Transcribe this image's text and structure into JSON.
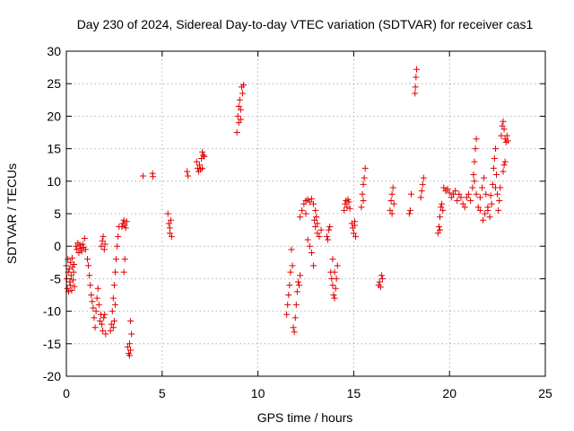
{
  "chart_data": {
    "type": "scatter",
    "title": "Day 230 of 2024, Sidereal Day-to-day VTEC variation (SDTVAR) for receiver cas1",
    "xlabel": "GPS time / hours",
    "ylabel": "SDTVAR / TECUs",
    "xlim": [
      0,
      25
    ],
    "ylim": [
      -20,
      30
    ],
    "xticks": [
      0,
      5,
      10,
      15,
      20,
      25
    ],
    "yticks": [
      -20,
      -15,
      -10,
      -5,
      0,
      5,
      10,
      15,
      20,
      25,
      30
    ],
    "xtick_labels": [
      "0",
      "5",
      "10",
      "15",
      "20",
      "25"
    ],
    "ytick_labels": [
      "-20",
      "-15",
      "-10",
      "-5",
      "0",
      "5",
      "10",
      "15",
      "20",
      "25",
      "30"
    ],
    "grid": true,
    "marker": "plus",
    "color": "#e00000",
    "series": [
      {
        "name": "SDTVAR",
        "points": [
          [
            0.0,
            -3
          ],
          [
            0.02,
            -5
          ],
          [
            0.05,
            -6.5
          ],
          [
            0.08,
            -2
          ],
          [
            0.1,
            -4
          ],
          [
            0.12,
            -7
          ],
          [
            0.15,
            -3.5
          ],
          [
            0.18,
            -5.5
          ],
          [
            0.2,
            -6
          ],
          [
            0.22,
            -2.5
          ],
          [
            0.25,
            -4.5
          ],
          [
            0.28,
            -6.8
          ],
          [
            0.3,
            -1.8
          ],
          [
            0.32,
            -3.2
          ],
          [
            0.35,
            -5.2
          ],
          [
            0.38,
            -4
          ],
          [
            0.4,
            -2.8
          ],
          [
            0.42,
            -6.2
          ],
          [
            0.5,
            0
          ],
          [
            0.55,
            -0.5
          ],
          [
            0.6,
            0.5
          ],
          [
            0.65,
            -1
          ],
          [
            0.7,
            0.2
          ],
          [
            0.75,
            -0.3
          ],
          [
            0.8,
            -0.8
          ],
          [
            0.85,
            0.3
          ],
          [
            0.9,
            -0.2
          ],
          [
            0.95,
            1.2
          ],
          [
            1.0,
            -0.5
          ],
          [
            1.1,
            -2
          ],
          [
            1.15,
            -3
          ],
          [
            1.2,
            -4.5
          ],
          [
            1.25,
            -6
          ],
          [
            1.3,
            -7.5
          ],
          [
            1.35,
            -8.5
          ],
          [
            1.4,
            -9.5
          ],
          [
            1.45,
            -11
          ],
          [
            1.5,
            -12.5
          ],
          [
            1.55,
            -10
          ],
          [
            1.6,
            -8
          ],
          [
            1.65,
            -6.5
          ],
          [
            1.7,
            -9
          ],
          [
            1.75,
            -11.5
          ],
          [
            1.8,
            -10.5
          ],
          [
            1.85,
            -12
          ],
          [
            1.9,
            -13
          ],
          [
            1.95,
            -11
          ],
          [
            2.0,
            -10.5
          ],
          [
            2.05,
            -13.5
          ],
          [
            1.82,
            0
          ],
          [
            1.88,
            0.8
          ],
          [
            1.92,
            1.5
          ],
          [
            1.98,
            -0.5
          ],
          [
            2.02,
            0.3
          ],
          [
            2.3,
            -13
          ],
          [
            2.35,
            -12
          ],
          [
            2.4,
            -10
          ],
          [
            2.45,
            -8
          ],
          [
            2.5,
            -6
          ],
          [
            2.55,
            -4
          ],
          [
            2.6,
            -2
          ],
          [
            2.65,
            0
          ],
          [
            2.7,
            1.5
          ],
          [
            2.75,
            3
          ],
          [
            2.45,
            -12.5
          ],
          [
            2.5,
            -11.5
          ],
          [
            2.55,
            -9
          ],
          [
            2.9,
            3
          ],
          [
            2.95,
            3.5
          ],
          [
            3.0,
            4
          ],
          [
            3.05,
            3.2
          ],
          [
            3.1,
            2.8
          ],
          [
            3.15,
            3.8
          ],
          [
            3.0,
            -4
          ],
          [
            3.05,
            -2
          ],
          [
            3.2,
            -15.5
          ],
          [
            3.25,
            -16.5
          ],
          [
            3.3,
            -15
          ],
          [
            3.35,
            -16
          ],
          [
            3.4,
            -13.5
          ],
          [
            3.35,
            -11.5
          ],
          [
            3.3,
            -16.8
          ],
          [
            4.0,
            10.8
          ],
          [
            4.5,
            11.2
          ],
          [
            4.52,
            10.7
          ],
          [
            5.3,
            5
          ],
          [
            5.35,
            3.5
          ],
          [
            5.4,
            2
          ],
          [
            5.45,
            4
          ],
          [
            5.5,
            1.5
          ],
          [
            5.4,
            2.8
          ],
          [
            6.3,
            11.5
          ],
          [
            6.35,
            10.8
          ],
          [
            6.8,
            13
          ],
          [
            6.85,
            12
          ],
          [
            6.9,
            11.5
          ],
          [
            6.95,
            12.5
          ],
          [
            7.0,
            11.8
          ],
          [
            7.05,
            13.5
          ],
          [
            7.1,
            14.5
          ],
          [
            7.15,
            14
          ],
          [
            7.2,
            13.8
          ],
          [
            7.1,
            12
          ],
          [
            8.9,
            17.5
          ],
          [
            8.95,
            20
          ],
          [
            9.0,
            21.5
          ],
          [
            9.05,
            22.5
          ],
          [
            9.1,
            19.5
          ],
          [
            9.15,
            24.5
          ],
          [
            9.2,
            23.5
          ],
          [
            9.25,
            24.8
          ],
          [
            9.1,
            21
          ],
          [
            9.0,
            19
          ],
          [
            11.5,
            -10.5
          ],
          [
            11.55,
            -9
          ],
          [
            11.6,
            -7.5
          ],
          [
            11.65,
            -6
          ],
          [
            11.7,
            -4
          ],
          [
            11.75,
            -0.5
          ],
          [
            11.8,
            -3
          ],
          [
            11.85,
            -12.5
          ],
          [
            11.9,
            -13.2
          ],
          [
            11.95,
            -11
          ],
          [
            12.0,
            -9
          ],
          [
            12.05,
            -7
          ],
          [
            12.1,
            -5.5
          ],
          [
            12.15,
            -6
          ],
          [
            12.2,
            -4.5
          ],
          [
            12.2,
            4.5
          ],
          [
            12.3,
            5.5
          ],
          [
            12.4,
            6.5
          ],
          [
            12.5,
            7
          ],
          [
            12.6,
            7.2
          ],
          [
            12.7,
            6.8
          ],
          [
            12.8,
            7.3
          ],
          [
            12.9,
            6.5
          ],
          [
            12.5,
            5
          ],
          [
            12.6,
            1
          ],
          [
            12.7,
            0
          ],
          [
            12.8,
            -1
          ],
          [
            12.9,
            -3
          ],
          [
            13.0,
            3
          ],
          [
            13.1,
            2
          ],
          [
            13.2,
            1.5
          ],
          [
            13.3,
            2.5
          ],
          [
            12.95,
            4
          ],
          [
            13.0,
            5.5
          ],
          [
            13.05,
            4.5
          ],
          [
            13.1,
            3.5
          ],
          [
            13.6,
            1.5
          ],
          [
            13.65,
            1
          ],
          [
            13.7,
            2.5
          ],
          [
            13.75,
            3
          ],
          [
            13.8,
            -4
          ],
          [
            13.85,
            -5
          ],
          [
            13.9,
            -6
          ],
          [
            13.95,
            -7.5
          ],
          [
            14.0,
            -8
          ],
          [
            14.05,
            -6.5
          ],
          [
            14.1,
            -5
          ],
          [
            14.15,
            -3
          ],
          [
            13.9,
            -2
          ],
          [
            14.0,
            -4
          ],
          [
            14.5,
            5.5
          ],
          [
            14.55,
            6.5
          ],
          [
            14.6,
            7
          ],
          [
            14.65,
            6
          ],
          [
            14.7,
            7.2
          ],
          [
            14.75,
            6.8
          ],
          [
            14.8,
            5.8
          ],
          [
            14.9,
            3.5
          ],
          [
            14.95,
            2.8
          ],
          [
            15.0,
            2
          ],
          [
            15.05,
            3.2
          ],
          [
            15.1,
            1.5
          ],
          [
            15.05,
            3.8
          ],
          [
            15.4,
            6
          ],
          [
            15.45,
            8
          ],
          [
            15.5,
            9.5
          ],
          [
            15.55,
            10.5
          ],
          [
            15.6,
            12
          ],
          [
            15.5,
            7
          ],
          [
            16.3,
            -6
          ],
          [
            16.35,
            -5.5
          ],
          [
            16.4,
            -6.3
          ],
          [
            16.45,
            -4.5
          ],
          [
            16.5,
            -5
          ],
          [
            16.9,
            5.5
          ],
          [
            16.95,
            7
          ],
          [
            17.0,
            8
          ],
          [
            17.05,
            9
          ],
          [
            17.1,
            6.5
          ],
          [
            17.0,
            5
          ],
          [
            17.9,
            5
          ],
          [
            17.95,
            5.5
          ],
          [
            18.0,
            8
          ],
          [
            18.2,
            23.5
          ],
          [
            18.22,
            24.5
          ],
          [
            18.25,
            26
          ],
          [
            18.28,
            27.2
          ],
          [
            18.5,
            7.5
          ],
          [
            18.55,
            8.5
          ],
          [
            18.6,
            9.5
          ],
          [
            18.65,
            10.5
          ],
          [
            19.4,
            2
          ],
          [
            19.45,
            3
          ],
          [
            19.5,
            4.5
          ],
          [
            19.55,
            6
          ],
          [
            19.6,
            6.5
          ],
          [
            19.65,
            5.5
          ],
          [
            19.5,
            2.5
          ],
          [
            19.7,
            9
          ],
          [
            19.8,
            8.5
          ],
          [
            19.9,
            8.8
          ],
          [
            20.0,
            8.2
          ],
          [
            20.1,
            7.5
          ],
          [
            20.2,
            8
          ],
          [
            20.3,
            8.5
          ],
          [
            20.4,
            7
          ],
          [
            20.5,
            8
          ],
          [
            20.6,
            7.5
          ],
          [
            20.7,
            6.5
          ],
          [
            20.8,
            6
          ],
          [
            20.9,
            7.5
          ],
          [
            21.0,
            8
          ],
          [
            21.1,
            7
          ],
          [
            21.2,
            9
          ],
          [
            21.25,
            11
          ],
          [
            21.3,
            13
          ],
          [
            21.35,
            15
          ],
          [
            21.4,
            16.5
          ],
          [
            21.3,
            10
          ],
          [
            21.4,
            8
          ],
          [
            21.5,
            6
          ],
          [
            21.6,
            7.5
          ],
          [
            21.7,
            9
          ],
          [
            21.8,
            10.5
          ],
          [
            21.9,
            8
          ],
          [
            22.0,
            6
          ],
          [
            22.1,
            4.5
          ],
          [
            22.2,
            6.5
          ],
          [
            22.25,
            9.5
          ],
          [
            22.3,
            12
          ],
          [
            22.35,
            13.5
          ],
          [
            22.4,
            15
          ],
          [
            22.45,
            11
          ],
          [
            22.5,
            8
          ],
          [
            22.55,
            5.5
          ],
          [
            22.6,
            7
          ],
          [
            22.65,
            9
          ],
          [
            22.7,
            17
          ],
          [
            22.75,
            18.5
          ],
          [
            22.8,
            19.2
          ],
          [
            22.85,
            18
          ],
          [
            22.9,
            16.5
          ],
          [
            22.95,
            16
          ],
          [
            23.0,
            17
          ],
          [
            23.05,
            16.2
          ],
          [
            22.8,
            11.5
          ],
          [
            22.85,
            12.5
          ],
          [
            22.9,
            13
          ],
          [
            21.6,
            5.5
          ],
          [
            21.75,
            4
          ],
          [
            21.85,
            5
          ],
          [
            22.0,
            5.5
          ],
          [
            22.15,
            7.8
          ],
          [
            22.4,
            9
          ]
        ]
      }
    ]
  }
}
